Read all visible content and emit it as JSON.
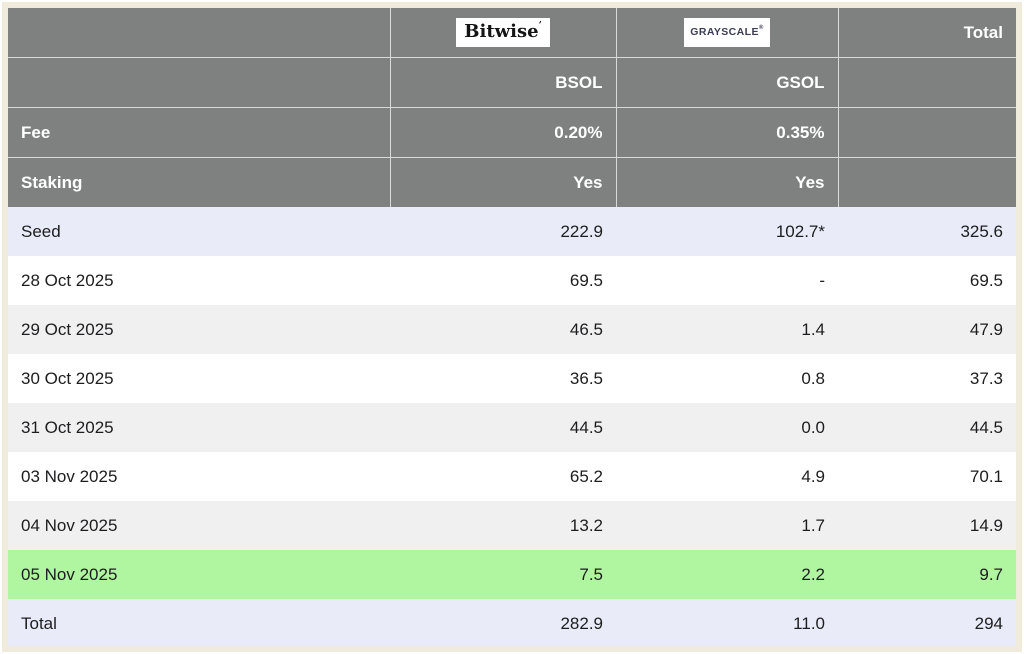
{
  "header": {
    "bitwise_logo_text": "Bitwise",
    "grayscale_logo_text": "GRAYSCALE",
    "total_label": "Total",
    "ticker_row": {
      "label": "",
      "bsol": "BSOL",
      "gsol": "GSOL",
      "total": ""
    },
    "fee_row": {
      "label": "Fee",
      "bsol": "0.20%",
      "gsol": "0.35%",
      "total": ""
    },
    "staking_row": {
      "label": "Staking",
      "bsol": "Yes",
      "gsol": "Yes",
      "total": ""
    }
  },
  "rows": [
    {
      "label": "Seed",
      "bsol": "222.9",
      "gsol": "102.7*",
      "total": "325.6"
    },
    {
      "label": "28 Oct 2025",
      "bsol": "69.5",
      "gsol": "-",
      "total": "69.5"
    },
    {
      "label": "29 Oct 2025",
      "bsol": "46.5",
      "gsol": "1.4",
      "total": "47.9"
    },
    {
      "label": "30 Oct 2025",
      "bsol": "36.5",
      "gsol": "0.8",
      "total": "37.3"
    },
    {
      "label": "31 Oct 2025",
      "bsol": "44.5",
      "gsol": "0.0",
      "total": "44.5"
    },
    {
      "label": "03 Nov 2025",
      "bsol": "65.2",
      "gsol": "4.9",
      "total": "70.1"
    },
    {
      "label": "04 Nov 2025",
      "bsol": "13.2",
      "gsol": "1.7",
      "total": "14.9"
    },
    {
      "label": "05 Nov 2025",
      "bsol": "7.5",
      "gsol": "2.2",
      "total": "9.7"
    },
    {
      "label": "Total",
      "bsol": "282.9",
      "gsol": "11.0",
      "total": "294"
    }
  ],
  "colors": {
    "header_bg": "#7f8080",
    "header_text": "#ffffff",
    "seed_total_row_bg": "#e9ecf8",
    "alt_row_bg": "#f0f0f1",
    "highlight_green_bg": "#b0f5a0",
    "frame_border": "#f0ecdd",
    "body_text": "#1d1d1f",
    "grayscale_logo_text_color": "#3c3c55"
  },
  "chart_data": {
    "type": "table",
    "title": "",
    "columns": [
      "",
      "Bitwise BSOL",
      "Grayscale GSOL",
      "Total"
    ],
    "issuer_meta": {
      "bsol": {
        "issuer": "Bitwise",
        "ticker": "BSOL",
        "fee": "0.20%",
        "staking": "Yes"
      },
      "gsol": {
        "issuer": "Grayscale",
        "ticker": "GSOL",
        "fee": "0.35%",
        "staking": "Yes"
      }
    },
    "rows": [
      [
        "Seed",
        222.9,
        "102.7*",
        325.6
      ],
      [
        "28 Oct 2025",
        69.5,
        null,
        69.5
      ],
      [
        "29 Oct 2025",
        46.5,
        1.4,
        47.9
      ],
      [
        "30 Oct 2025",
        36.5,
        0.8,
        37.3
      ],
      [
        "31 Oct 2025",
        44.5,
        0.0,
        44.5
      ],
      [
        "03 Nov 2025",
        65.2,
        4.9,
        70.1
      ],
      [
        "04 Nov 2025",
        13.2,
        1.7,
        14.9
      ],
      [
        "05 Nov 2025",
        7.5,
        2.2,
        9.7
      ],
      [
        "Total",
        282.9,
        11.0,
        294
      ]
    ],
    "notes": "05 Nov 2025 row highlighted green (latest day); Seed and Total rows highlighted lavender"
  }
}
